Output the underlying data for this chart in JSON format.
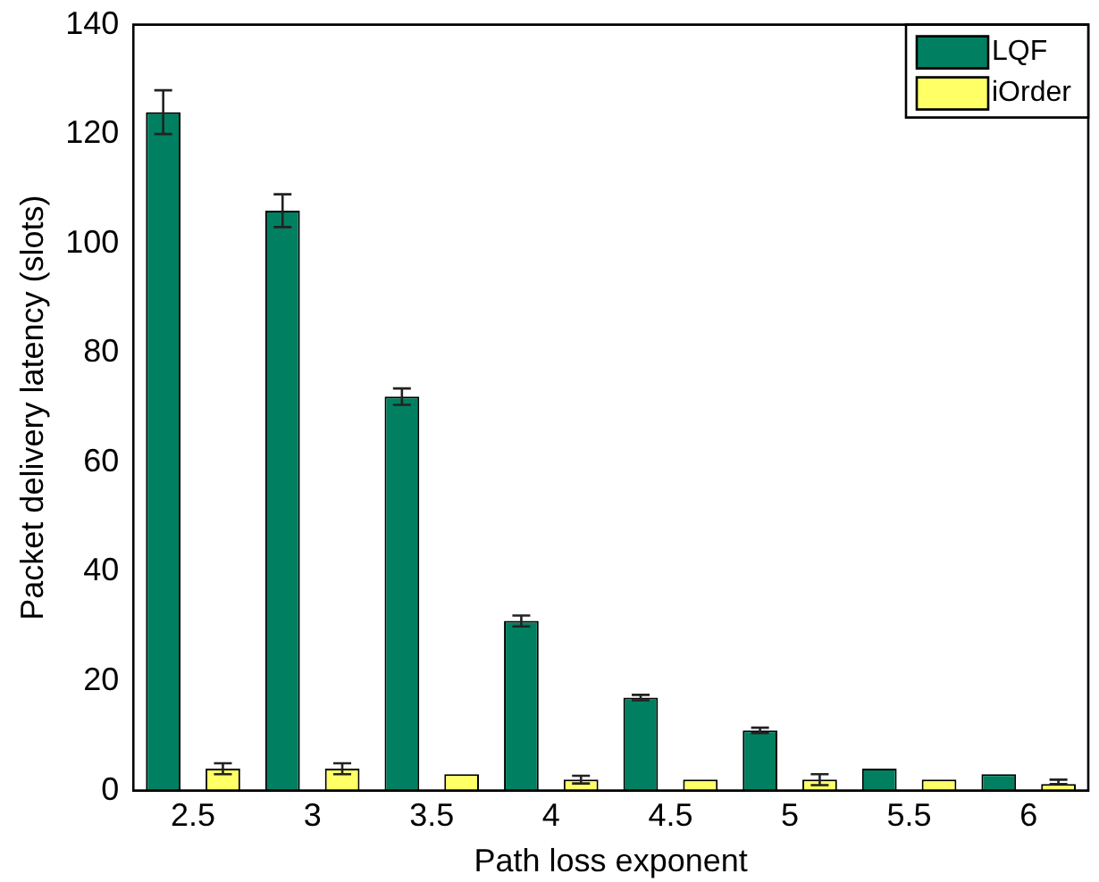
{
  "chart_data": {
    "type": "bar",
    "xlabel": "Path loss exponent",
    "ylabel": "Packet delivery latency (slots)",
    "categories": [
      "2.5",
      "3",
      "3.5",
      "4",
      "4.5",
      "5",
      "5.5",
      "6"
    ],
    "series": [
      {
        "name": "LQF",
        "color": "#008060",
        "values": [
          124,
          106,
          72,
          31,
          17,
          11,
          4,
          3
        ],
        "errors": [
          4,
          3,
          1.5,
          1,
          0.5,
          0.5,
          null,
          null
        ]
      },
      {
        "name": "iOrder",
        "color": "#ffff66",
        "values": [
          4,
          4,
          3,
          2,
          2,
          2,
          2,
          1.2
        ],
        "errors": [
          1,
          1,
          null,
          0.7,
          null,
          1,
          null,
          [
            1.2,
            2
          ]
        ]
      }
    ],
    "ylim": [
      0,
      140
    ],
    "yticks": [
      0,
      20,
      40,
      60,
      80,
      100,
      120,
      140
    ],
    "grid": false,
    "legend": "top right"
  }
}
